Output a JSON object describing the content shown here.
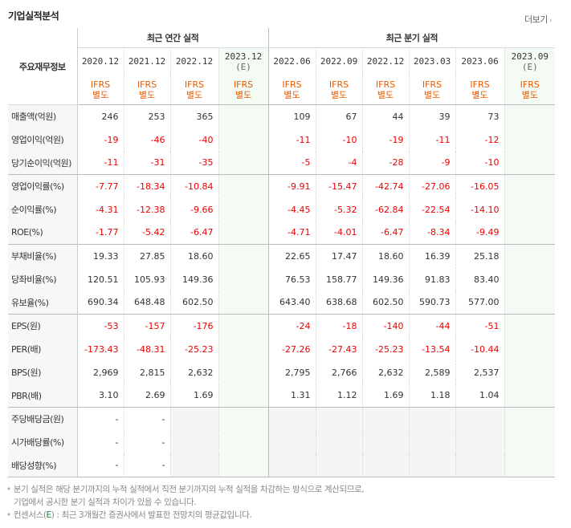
{
  "title": "기업실적분석",
  "more_label": "더보기",
  "header": {
    "row_label": "주요재무정보",
    "annual_label": "최근 연간 실적",
    "quarter_label": "최근 분기 실적",
    "annual_periods": [
      "2020.12",
      "2021.12",
      "2022.12",
      "2023.12"
    ],
    "quarter_periods": [
      "2022.06",
      "2022.09",
      "2022.12",
      "2023.03",
      "2023.06",
      "2023.09"
    ],
    "estimate_mark": "(E)",
    "ifrs": "IFRS",
    "basis": "별도"
  },
  "rows": [
    {
      "label": "매출액(억원)",
      "annual": [
        "246",
        "253",
        "365",
        ""
      ],
      "quarter": [
        "109",
        "67",
        "44",
        "39",
        "73",
        ""
      ]
    },
    {
      "label": "영업이익(억원)",
      "annual": [
        "-19",
        "-46",
        "-40",
        ""
      ],
      "quarter": [
        "-11",
        "-10",
        "-19",
        "-11",
        "-12",
        ""
      ]
    },
    {
      "label": "당기순이익(억원)",
      "annual": [
        "-11",
        "-31",
        "-35",
        ""
      ],
      "quarter": [
        "-5",
        "-4",
        "-28",
        "-9",
        "-10",
        ""
      ]
    },
    {
      "label": "영업이익률(%)",
      "annual": [
        "-7.77",
        "-18.34",
        "-10.84",
        ""
      ],
      "quarter": [
        "-9.91",
        "-15.47",
        "-42.74",
        "-27.06",
        "-16.05",
        ""
      ]
    },
    {
      "label": "순이익률(%)",
      "annual": [
        "-4.31",
        "-12.38",
        "-9.66",
        ""
      ],
      "quarter": [
        "-4.45",
        "-5.32",
        "-62.84",
        "-22.54",
        "-14.10",
        ""
      ]
    },
    {
      "label": "ROE(%)",
      "annual": [
        "-1.77",
        "-5.42",
        "-6.47",
        ""
      ],
      "quarter": [
        "-4.71",
        "-4.01",
        "-6.47",
        "-8.34",
        "-9.49",
        ""
      ]
    },
    {
      "label": "부채비율(%)",
      "annual": [
        "19.33",
        "27.85",
        "18.60",
        ""
      ],
      "quarter": [
        "22.65",
        "17.47",
        "18.60",
        "16.39",
        "25.18",
        ""
      ]
    },
    {
      "label": "당좌비율(%)",
      "annual": [
        "120.51",
        "105.93",
        "149.36",
        ""
      ],
      "quarter": [
        "76.53",
        "158.77",
        "149.36",
        "91.83",
        "83.40",
        ""
      ]
    },
    {
      "label": "유보율(%)",
      "annual": [
        "690.34",
        "648.48",
        "602.50",
        ""
      ],
      "quarter": [
        "643.40",
        "638.68",
        "602.50",
        "590.73",
        "577.00",
        ""
      ]
    },
    {
      "label": "EPS(원)",
      "annual": [
        "-53",
        "-157",
        "-176",
        ""
      ],
      "quarter": [
        "-24",
        "-18",
        "-140",
        "-44",
        "-51",
        ""
      ]
    },
    {
      "label": "PER(배)",
      "annual": [
        "-173.43",
        "-48.31",
        "-25.23",
        ""
      ],
      "quarter": [
        "-27.26",
        "-27.43",
        "-25.23",
        "-13.54",
        "-10.44",
        ""
      ]
    },
    {
      "label": "BPS(원)",
      "annual": [
        "2,969",
        "2,815",
        "2,632",
        ""
      ],
      "quarter": [
        "2,795",
        "2,766",
        "2,632",
        "2,589",
        "2,537",
        ""
      ]
    },
    {
      "label": "PBR(배)",
      "annual": [
        "3.10",
        "2.69",
        "1.69",
        ""
      ],
      "quarter": [
        "1.31",
        "1.12",
        "1.69",
        "1.18",
        "1.04",
        ""
      ]
    },
    {
      "label": "주당배당금(원)",
      "annual": [
        "-",
        "-",
        "",
        ""
      ],
      "quarter": [
        "",
        "",
        "",
        "",
        "",
        ""
      ]
    },
    {
      "label": "시가배당률(%)",
      "annual": [
        "-",
        "-",
        "",
        ""
      ],
      "quarter": [
        "",
        "",
        "",
        "",
        "",
        ""
      ]
    },
    {
      "label": "배당성향(%)",
      "annual": [
        "-",
        "-",
        "",
        ""
      ],
      "quarter": [
        "",
        "",
        "",
        "",
        "",
        ""
      ]
    }
  ],
  "notes": {
    "line1": "분기 실적은 해당 분기까지의 누적 실적에서 직전 분기까지의 누적 실적을 차감하는 방식으로 계산되므로,",
    "line2": "기업에서 공시한 분기 실적과 차이가 있을 수 있습니다.",
    "line3_pre": "컨센서스(",
    "line3_mark": "E",
    "line3_post": ") : 최근 3개월간 증권사에서 발표한 전망치의 평균값입니다."
  }
}
